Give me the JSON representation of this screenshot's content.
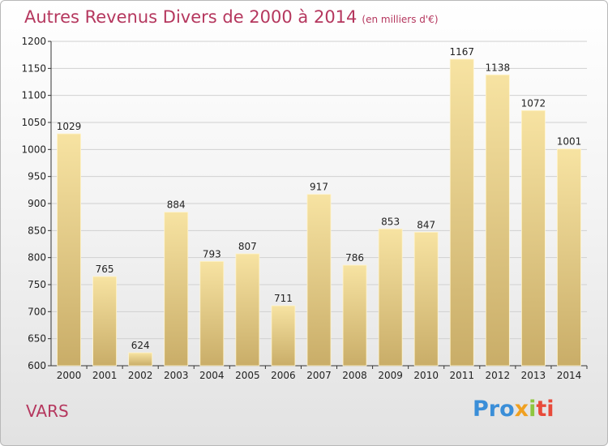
{
  "header": {
    "title": "Autres Revenus Divers de 2000 à 2014",
    "unit": "(en milliers d'€)"
  },
  "footer": {
    "place": "VARS",
    "logo": "Proxiti"
  },
  "colors": {
    "title": "#b5375e",
    "bar_light": "#f7e3a2",
    "bar_dark": "#c9ad68",
    "grid": "#d0d0d0"
  },
  "chart_data": {
    "type": "bar",
    "title": "Autres Revenus Divers de 2000 à 2014",
    "subtitle": "(en milliers d'€)",
    "categories": [
      "2000",
      "2001",
      "2002",
      "2003",
      "2004",
      "2005",
      "2006",
      "2007",
      "2008",
      "2009",
      "2010",
      "2011",
      "2012",
      "2013",
      "2014"
    ],
    "values": [
      1029,
      765,
      624,
      884,
      793,
      807,
      711,
      917,
      786,
      853,
      847,
      1167,
      1138,
      1072,
      1001
    ],
    "ylim": [
      600,
      1200
    ],
    "yticks": [
      600,
      650,
      700,
      750,
      800,
      850,
      900,
      950,
      1000,
      1050,
      1100,
      1150,
      1200
    ],
    "grid": true,
    "xlabel": "",
    "ylabel": ""
  }
}
